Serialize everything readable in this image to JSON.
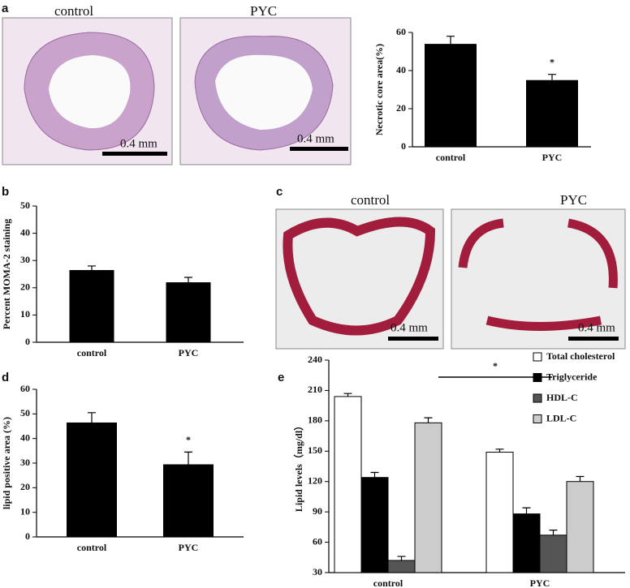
{
  "panels": [
    "a",
    "b",
    "c",
    "d",
    "e"
  ],
  "images": [
    {
      "label": "control",
      "scale": "0.4 mm"
    },
    {
      "label": "PYC",
      "scale": "0.4 mm"
    },
    {
      "label": "control",
      "scale": "0.4 mm"
    },
    {
      "label": "PYC",
      "scale": "0.4 mm"
    }
  ],
  "chart_data": [
    {
      "type": "bar",
      "y_label": "Necrotic core area(%)",
      "categories": [
        "control",
        "PYC"
      ],
      "values": [
        54,
        35
      ],
      "errors": [
        4,
        3
      ],
      "color": "#000000",
      "annotation": "*",
      "ylim": [
        0,
        60
      ],
      "yticks": [
        0,
        20,
        40,
        60
      ]
    },
    {
      "type": "bar",
      "y_label": "Percent  MOMA-2 staining",
      "categories": [
        "control",
        "PYC"
      ],
      "values": [
        26.5,
        22
      ],
      "errors": [
        1.5,
        1.8
      ],
      "color": "#000000",
      "ylim": [
        0,
        50
      ],
      "yticks": [
        0,
        10,
        20,
        30,
        40,
        50
      ]
    },
    {
      "type": "bar",
      "y_label": "lipid positive area (%)",
      "categories": [
        "control",
        "PYC"
      ],
      "values": [
        46.5,
        29.5
      ],
      "errors": [
        4,
        5
      ],
      "color": "#000000",
      "annotation": "*",
      "ylim": [
        0,
        60
      ],
      "yticks": [
        0,
        10,
        20,
        30,
        40,
        50,
        60
      ]
    },
    {
      "type": "grouped-bar",
      "y_label": "Lipid levels（mg/dl）",
      "categories": [
        "control",
        "PYC"
      ],
      "series": [
        {
          "name": "Total cholesterol",
          "color": "#ffffff",
          "values": [
            204,
            149
          ],
          "errors": [
            3,
            3
          ]
        },
        {
          "name": "Triglyceride",
          "color": "#000000",
          "values": [
            124,
            88
          ],
          "errors": [
            5,
            6
          ]
        },
        {
          "name": "HDL-C",
          "color": "#555555",
          "values": [
            42,
            67
          ],
          "errors": [
            4,
            5
          ]
        },
        {
          "name": "LDL-C",
          "color": "#cccccc",
          "values": [
            178,
            120
          ],
          "errors": [
            5,
            5
          ]
        }
      ],
      "annotation": "*",
      "ylim": [
        30,
        240
      ],
      "yticks": [
        30,
        60,
        90,
        120,
        150,
        180,
        210,
        240
      ]
    }
  ]
}
